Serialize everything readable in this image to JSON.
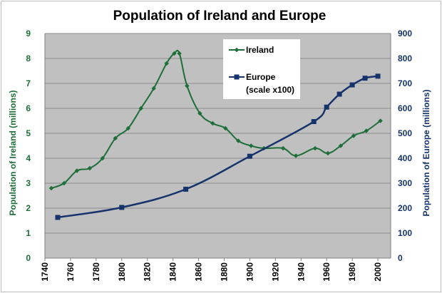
{
  "chart_data": {
    "type": "line",
    "title": "Population of Ireland and Europe",
    "xlabel": "",
    "xlim": [
      1740,
      2010
    ],
    "x_ticks": [
      "1740",
      "1760",
      "1780",
      "1800",
      "1820",
      "1840",
      "1860",
      "1880",
      "1900",
      "1920",
      "1940",
      "1960",
      "1980",
      "2000"
    ],
    "ylabel_left": "Population of Ireland (millions)",
    "ylim_left": [
      0,
      9
    ],
    "y_ticks_left": [
      "0",
      "1",
      "2",
      "3",
      "4",
      "5",
      "6",
      "7",
      "8",
      "9"
    ],
    "ylabel_right": "Population of Europe (millions)",
    "ylim_right": [
      0,
      900
    ],
    "y_ticks_right": [
      "0",
      "100",
      "200",
      "300",
      "400",
      "500",
      "600",
      "700",
      "800",
      "900"
    ],
    "grid": "horizontal",
    "plot_background": "#c0c0c0",
    "legend_position": "top-center",
    "series": [
      {
        "name": "Ireland",
        "axis": "left",
        "color": "#1e6e3a",
        "marker": "diamond",
        "x": [
          1745,
          1755,
          1765,
          1775,
          1785,
          1795,
          1805,
          1815,
          1825,
          1835,
          1841,
          1845,
          1851,
          1861,
          1871,
          1881,
          1891,
          1901,
          1911,
          1926,
          1936,
          1951,
          1961,
          1971,
          1981,
          1991,
          2002
        ],
        "y": [
          2.8,
          3.0,
          3.5,
          3.6,
          4.0,
          4.8,
          5.2,
          6.0,
          6.8,
          7.8,
          8.2,
          8.2,
          6.9,
          5.8,
          5.4,
          5.2,
          4.7,
          4.5,
          4.4,
          4.4,
          4.1,
          4.4,
          4.2,
          4.5,
          4.9,
          5.1,
          5.5
        ]
      },
      {
        "name": "Europe",
        "axis": "right",
        "label_line2": "(scale x100)",
        "color": "#16336b",
        "marker": "square",
        "x": [
          1750,
          1800,
          1850,
          1900,
          1950,
          1960,
          1970,
          1980,
          1990,
          2000
        ],
        "y": [
          163,
          203,
          276,
          408,
          547,
          605,
          657,
          694,
          721,
          729
        ]
      }
    ]
  }
}
